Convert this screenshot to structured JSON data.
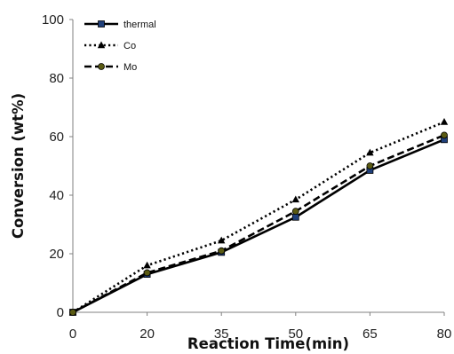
{
  "chart_data": {
    "type": "line",
    "xlabel": "Reaction Time(min)",
    "ylabel": "Conversion (wt%)",
    "categories": [
      "0",
      "20",
      "35",
      "50",
      "65",
      "80"
    ],
    "ylim": [
      0,
      100
    ],
    "yticks": [
      "0",
      "20",
      "40",
      "60",
      "80",
      "100"
    ],
    "grid": false,
    "legend_position": "top-left",
    "series": [
      {
        "name": "thermal",
        "values": [
          0,
          13,
          20.5,
          32.5,
          48.5,
          59
        ],
        "color": "#000000",
        "marker": "square",
        "marker_color": "#1f3f7a",
        "line_style": "solid"
      },
      {
        "name": "Co",
        "values": [
          0,
          16,
          24.5,
          38.5,
          54.5,
          65
        ],
        "color": "#000000",
        "marker": "triangle",
        "marker_color": "#000000",
        "line_style": "dotted"
      },
      {
        "name": "Mo",
        "values": [
          0,
          13.5,
          21,
          34.5,
          50,
          60.5
        ],
        "color": "#000000",
        "marker": "circle",
        "marker_color": "#5a5a12",
        "line_style": "dashed"
      }
    ]
  }
}
